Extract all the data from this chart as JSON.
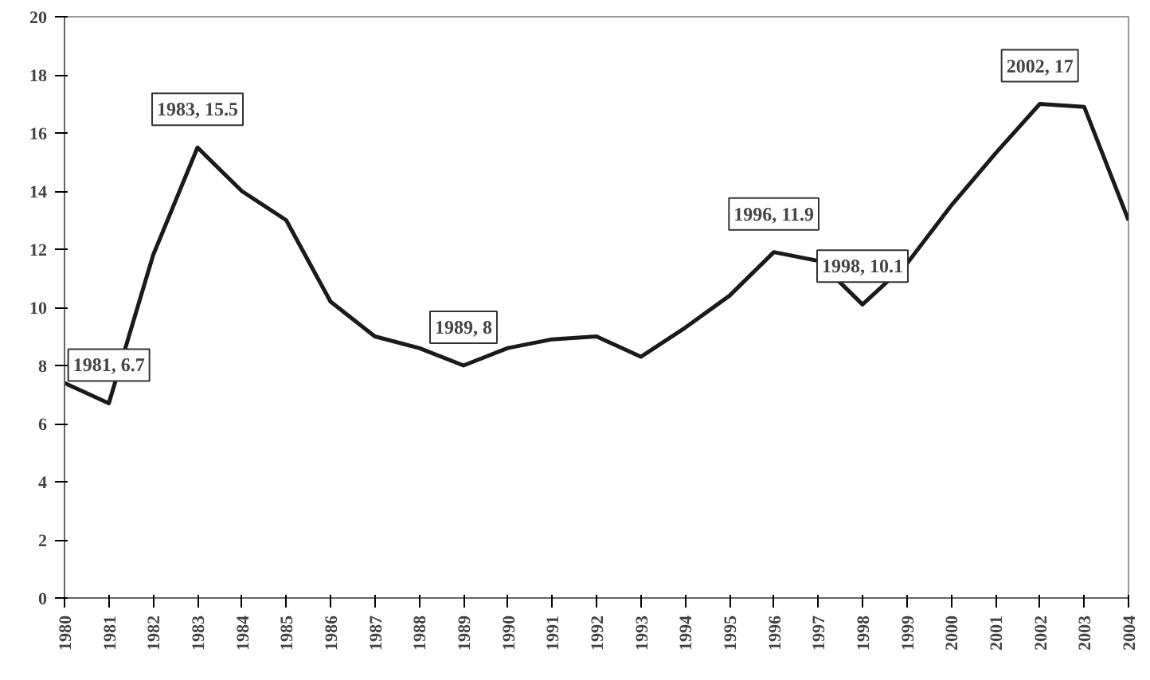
{
  "chart_data": {
    "type": "line",
    "x": [
      1980,
      1981,
      1982,
      1983,
      1984,
      1985,
      1986,
      1987,
      1988,
      1989,
      1990,
      1991,
      1992,
      1993,
      1994,
      1995,
      1996,
      1997,
      1998,
      1999,
      2000,
      2001,
      2002,
      2003,
      2004
    ],
    "values": [
      7.4,
      6.7,
      11.8,
      15.5,
      14.0,
      13.0,
      10.2,
      9.0,
      8.6,
      8.0,
      8.6,
      8.9,
      9.0,
      8.3,
      9.3,
      10.4,
      11.9,
      11.6,
      10.1,
      11.5,
      13.5,
      15.3,
      17,
      16.9,
      13.0
    ],
    "color": "#1a1a1a",
    "xlim": [
      1980,
      2004
    ],
    "xticks": [
      1980,
      1981,
      1982,
      1983,
      1984,
      1985,
      1986,
      1987,
      1988,
      1989,
      1990,
      1991,
      1992,
      1993,
      1994,
      1995,
      1996,
      1997,
      1998,
      1999,
      2000,
      2001,
      2002,
      2003,
      2004
    ],
    "ylim": [
      0,
      20
    ],
    "yticks": [
      0,
      2,
      4,
      6,
      8,
      10,
      12,
      14,
      16,
      18,
      20
    ],
    "grid": false,
    "marker": "none",
    "line_style": "solid",
    "annotations": [
      {
        "text": "1981, 6.7",
        "x": 1981,
        "y": 6.7
      },
      {
        "text": "1983, 15.5",
        "x": 1983,
        "y": 15.5
      },
      {
        "text": "1989, 8",
        "x": 1989,
        "y": 8
      },
      {
        "text": "1996, 11.9",
        "x": 1996,
        "y": 11.9
      },
      {
        "text": "1998, 10.1",
        "x": 1998,
        "y": 10.1
      },
      {
        "text": "2002, 17",
        "x": 2002,
        "y": 17
      }
    ]
  }
}
